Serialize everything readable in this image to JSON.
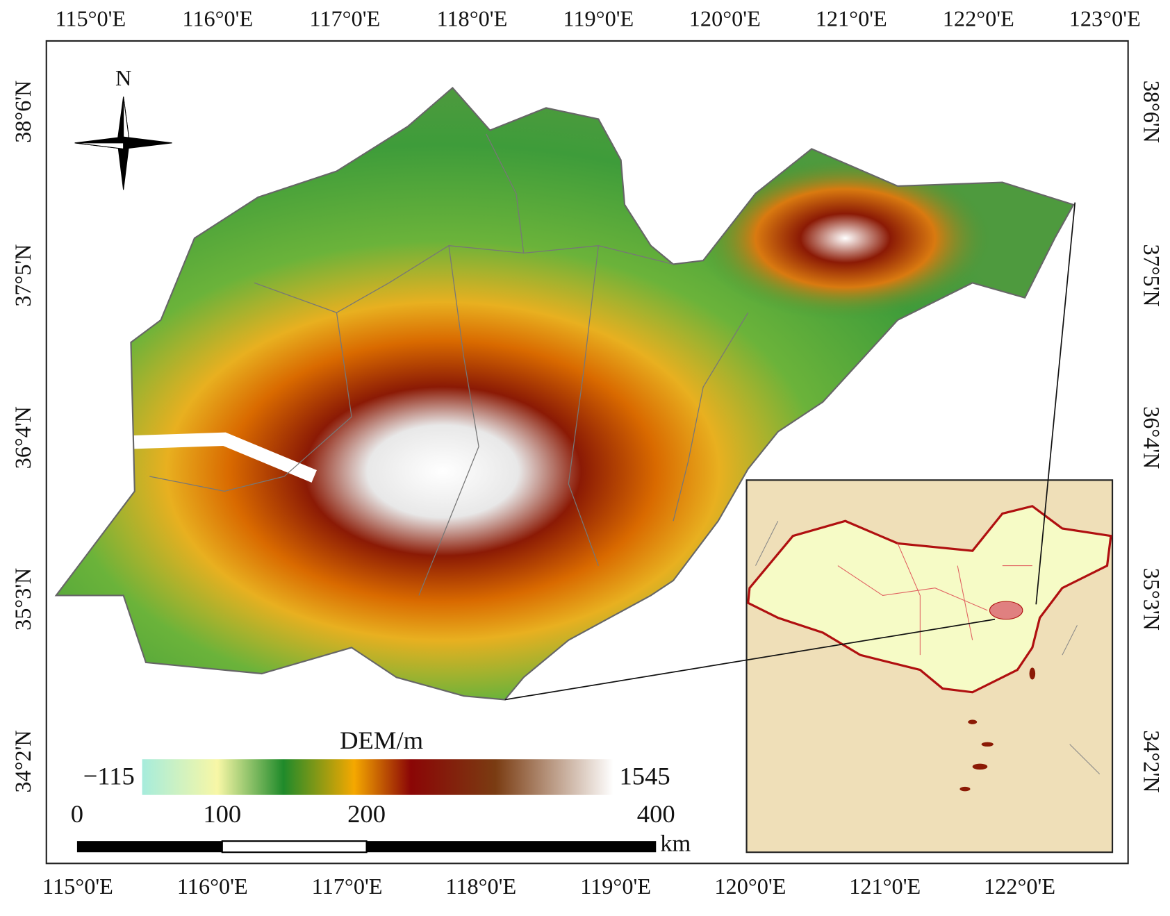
{
  "map": {
    "top_longitudes": [
      "115°0'E",
      "116°0'E",
      "117°0'E",
      "118°0'E",
      "119°0'E",
      "120°0'E",
      "121°0'E",
      "122°0'E",
      "123°0'E"
    ],
    "bottom_longitudes": [
      "115°0'E",
      "116°0'E",
      "117°0'E",
      "118°0'E",
      "119°0'E",
      "120°0'E",
      "121°0'E",
      "122°0'E"
    ],
    "left_latitudes": [
      "38°6'N",
      "37°5'N",
      "36°4'N",
      "35°3'N",
      "34°2'N"
    ],
    "right_latitudes": [
      "38°6'N",
      "37°5'N",
      "36°4'N",
      "35°3'N",
      "34°2'N"
    ],
    "north_arrow": "N",
    "legend": {
      "title": "DEM/m",
      "min": "−115",
      "max": "1545"
    },
    "scale_bar": {
      "labels": [
        "0",
        "100",
        "200",
        "400"
      ],
      "unit": "km"
    }
  }
}
